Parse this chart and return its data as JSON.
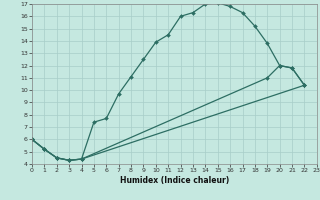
{
  "title": "",
  "xlabel": "Humidex (Indice chaleur)",
  "bg_color": "#c5e8e0",
  "line_color": "#2d6e63",
  "grid_color": "#a8cec8",
  "xlim": [
    0,
    23
  ],
  "ylim": [
    4,
    17
  ],
  "xticks": [
    0,
    1,
    2,
    3,
    4,
    5,
    6,
    7,
    8,
    9,
    10,
    11,
    12,
    13,
    14,
    15,
    16,
    17,
    18,
    19,
    20,
    21,
    22,
    23
  ],
  "yticks": [
    4,
    5,
    6,
    7,
    8,
    9,
    10,
    11,
    12,
    13,
    14,
    15,
    16,
    17
  ],
  "line1_x": [
    0,
    1,
    2,
    3,
    4,
    5,
    6,
    7,
    8,
    9,
    10,
    11,
    12,
    13,
    14,
    15,
    16,
    17,
    18,
    19,
    20,
    21,
    22
  ],
  "line1_y": [
    6.0,
    5.2,
    4.5,
    4.3,
    4.4,
    7.4,
    7.7,
    9.7,
    11.1,
    12.5,
    13.9,
    14.5,
    16.0,
    16.3,
    17.0,
    17.1,
    16.8,
    16.3,
    15.2,
    13.8,
    12.0,
    11.8,
    10.4
  ],
  "line2_x": [
    0,
    1,
    2,
    3,
    4,
    22
  ],
  "line2_y": [
    6.0,
    5.2,
    4.5,
    4.3,
    4.4,
    10.4
  ],
  "line3_x": [
    0,
    1,
    2,
    3,
    4,
    19,
    20,
    21,
    22
  ],
  "line3_y": [
    6.0,
    5.2,
    4.5,
    4.3,
    4.4,
    11.0,
    12.0,
    11.8,
    10.4
  ]
}
